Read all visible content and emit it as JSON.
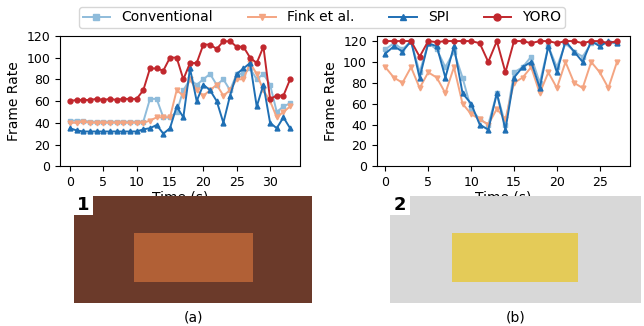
{
  "chart_data": [
    {
      "type": "line",
      "x_label": "Time (s)",
      "y_label": "Frame Rate",
      "legend": "upper center",
      "grid": false,
      "x": [
        0,
        1,
        2,
        3,
        4,
        5,
        6,
        7,
        8,
        9,
        10,
        11,
        12,
        13,
        14,
        15,
        16,
        17,
        18,
        19,
        20,
        21,
        22,
        23,
        24,
        25,
        26,
        27,
        28,
        29,
        30,
        31,
        32,
        33
      ],
      "xlim": [
        -1.5,
        34.5
      ],
      "xticks": [
        0,
        5,
        10,
        15,
        20,
        25,
        30
      ],
      "ylim": [
        0,
        120
      ],
      "yticks": [
        0,
        20,
        40,
        60,
        80,
        100,
        120
      ],
      "series": [
        {
          "name": "Conventional",
          "color": "#8fbcdb",
          "marker": "square",
          "values": [
            42,
            42,
            42,
            41,
            41,
            41,
            41,
            41,
            41,
            41,
            41,
            41,
            62,
            62,
            45,
            45,
            50,
            70,
            80,
            75,
            80,
            85,
            75,
            80,
            70,
            85,
            85,
            90,
            80,
            85,
            75,
            50,
            55,
            58
          ]
        },
        {
          "name": "Fink et al.",
          "color": "#f4a582",
          "marker": "triangle_down",
          "values": [
            40,
            40,
            41,
            40,
            40,
            40,
            40,
            40,
            40,
            40,
            40,
            40,
            42,
            45,
            45,
            45,
            70,
            65,
            80,
            70,
            65,
            70,
            75,
            65,
            70,
            80,
            80,
            95,
            85,
            70,
            60,
            45,
            50,
            55
          ]
        },
        {
          "name": "SPI",
          "color": "#1f6fb4",
          "marker": "triangle_up",
          "values": [
            35,
            33,
            32,
            32,
            32,
            32,
            32,
            32,
            32,
            32,
            32,
            34,
            35,
            38,
            30,
            35,
            55,
            45,
            90,
            60,
            75,
            70,
            60,
            40,
            65,
            85,
            90,
            95,
            55,
            75,
            40,
            35,
            45,
            35
          ]
        },
        {
          "name": "YORO",
          "color": "#c1272d",
          "marker": "circle",
          "values": [
            60,
            61,
            61,
            61,
            62,
            61,
            62,
            61,
            62,
            62,
            62,
            70,
            90,
            90,
            88,
            100,
            100,
            80,
            95,
            95,
            112,
            112,
            108,
            115,
            115,
            110,
            110,
            100,
            95,
            110,
            62,
            65,
            65,
            80
          ]
        }
      ]
    },
    {
      "type": "line",
      "x_label": "Time (s)",
      "y_label": "Frame Rate",
      "grid": false,
      "x": [
        0,
        1,
        2,
        3,
        4,
        5,
        6,
        7,
        8,
        9,
        10,
        11,
        12,
        13,
        14,
        15,
        16,
        17,
        18,
        19,
        20,
        21,
        22,
        23,
        24,
        25,
        26,
        27
      ],
      "xlim": [
        -1,
        28.5
      ],
      "xticks": [
        0,
        5,
        10,
        15,
        20,
        25
      ],
      "ylim": [
        0,
        125
      ],
      "yticks": [
        0,
        20,
        40,
        60,
        80,
        100,
        120
      ],
      "series": [
        {
          "name": "Conventional",
          "color": "#8fbcdb",
          "marker": "square",
          "values": [
            112,
            118,
            112,
            120,
            90,
            118,
            112,
            95,
            110,
            85,
            55,
            45,
            40,
            70,
            40,
            90,
            95,
            105,
            80,
            115,
            95,
            118,
            110,
            105,
            118,
            118,
            118,
            118
          ]
        },
        {
          "name": "Fink et al.",
          "color": "#f4a582",
          "marker": "triangle_down",
          "values": [
            95,
            85,
            80,
            95,
            75,
            90,
            85,
            70,
            95,
            60,
            50,
            45,
            40,
            55,
            45,
            80,
            85,
            95,
            70,
            90,
            75,
            100,
            80,
            75,
            100,
            90,
            75,
            100
          ]
        },
        {
          "name": "SPI",
          "color": "#1f6fb4",
          "marker": "triangle_up",
          "values": [
            108,
            115,
            110,
            120,
            85,
            118,
            115,
            85,
            115,
            70,
            60,
            40,
            35,
            70,
            35,
            85,
            95,
            100,
            75,
            115,
            90,
            120,
            110,
            100,
            120,
            115,
            120,
            118
          ]
        },
        {
          "name": "YORO",
          "color": "#c1272d",
          "marker": "circle",
          "values": [
            120,
            120,
            120,
            120,
            105,
            120,
            119,
            120,
            120,
            120,
            120,
            118,
            100,
            120,
            90,
            120,
            120,
            118,
            120,
            120,
            118,
            120,
            120,
            118,
            120,
            120,
            118,
            120
          ]
        }
      ]
    }
  ],
  "images": [
    {
      "number": "1",
      "caption": "(a)"
    },
    {
      "number": "2",
      "caption": "(b)"
    }
  ]
}
